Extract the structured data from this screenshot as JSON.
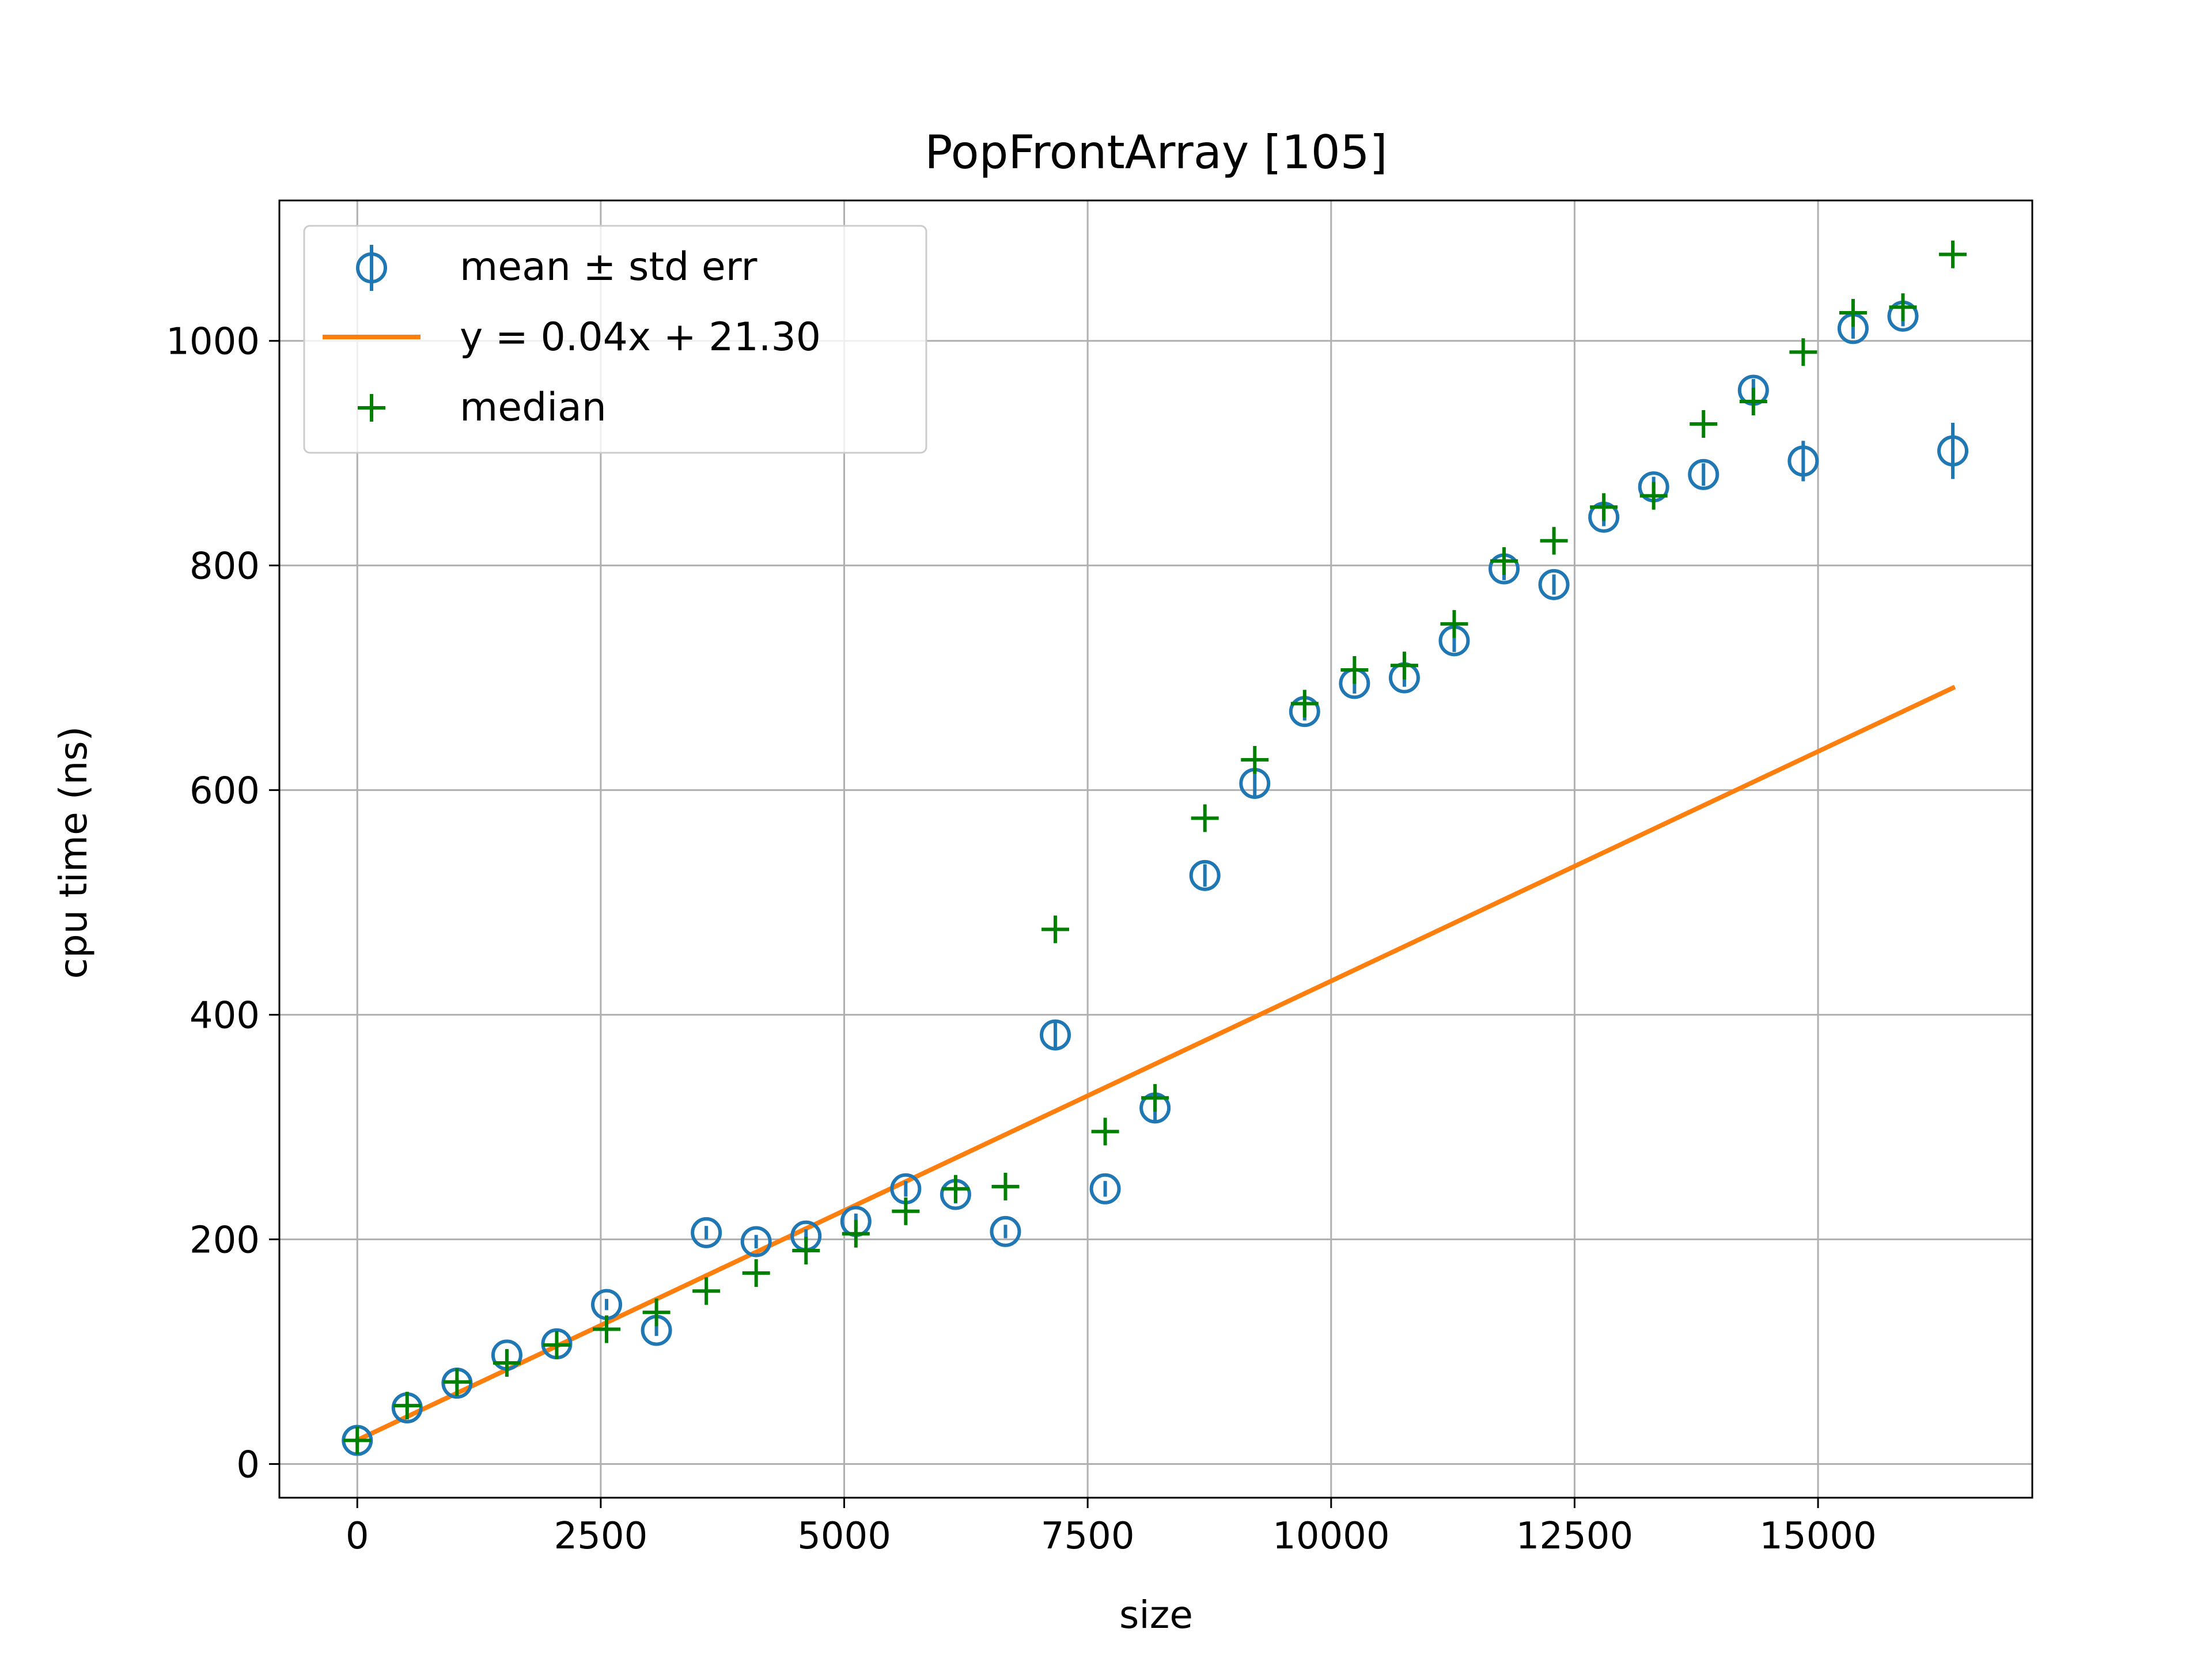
{
  "chart_data": {
    "type": "scatter",
    "title": "PopFrontArray [105]",
    "xlabel": "size",
    "ylabel": "cpu time (ns)",
    "xlim": [
      -800,
      17200
    ],
    "ylim": [
      -30,
      1125
    ],
    "xticks": [
      0,
      2500,
      5000,
      7500,
      10000,
      12500,
      15000
    ],
    "yticks": [
      0,
      200,
      400,
      600,
      800,
      1000
    ],
    "grid": true,
    "legend_position": "top-left",
    "series": [
      {
        "name": "mean ± std err",
        "kind": "errorbar",
        "color": "#1f77b4",
        "x": [
          0,
          512,
          1024,
          1536,
          2048,
          2560,
          3072,
          3584,
          4096,
          4608,
          5120,
          5632,
          6144,
          6656,
          7168,
          7680,
          8192,
          8704,
          9216,
          9728,
          10240,
          10752,
          11264,
          11776,
          12288,
          12800,
          13312,
          13824,
          14336,
          14848,
          15360,
          15872,
          16384
        ],
        "y": [
          21,
          50,
          72,
          97,
          107,
          142,
          119,
          206,
          198,
          203,
          216,
          245,
          240,
          207,
          382,
          245,
          317,
          524,
          606,
          670,
          695,
          700,
          733,
          797,
          783,
          843,
          870,
          881,
          956,
          893,
          1011,
          1022,
          902
        ],
        "err": [
          3,
          3,
          4,
          4,
          5,
          5,
          5,
          6,
          6,
          6,
          7,
          7,
          8,
          6,
          12,
          7,
          12,
          10,
          13,
          8,
          9,
          8,
          10,
          10,
          9,
          8,
          9,
          10,
          10,
          18,
          9,
          9,
          25
        ]
      },
      {
        "name": "y = 0.04x + 21.30",
        "kind": "line",
        "color": "#ff7f0e",
        "x": [
          0,
          16384
        ],
        "y": [
          21.3,
          691
        ]
      },
      {
        "name": "median",
        "kind": "marker",
        "color": "#008000",
        "x": [
          0,
          512,
          1024,
          1536,
          2048,
          2560,
          3072,
          3584,
          4096,
          4608,
          5120,
          5632,
          6144,
          6656,
          7168,
          7680,
          8192,
          8704,
          9216,
          9728,
          10240,
          10752,
          11264,
          11776,
          12288,
          12800,
          13312,
          13824,
          14336,
          14848,
          15360,
          15872,
          16384
        ],
        "y": [
          21,
          52,
          73,
          90,
          106,
          120,
          135,
          154,
          170,
          190,
          205,
          225,
          245,
          247,
          476,
          296,
          326,
          575,
          627,
          677,
          707,
          711,
          748,
          804,
          822,
          852,
          862,
          926,
          946,
          990,
          1025,
          1030,
          1077
        ]
      }
    ]
  }
}
